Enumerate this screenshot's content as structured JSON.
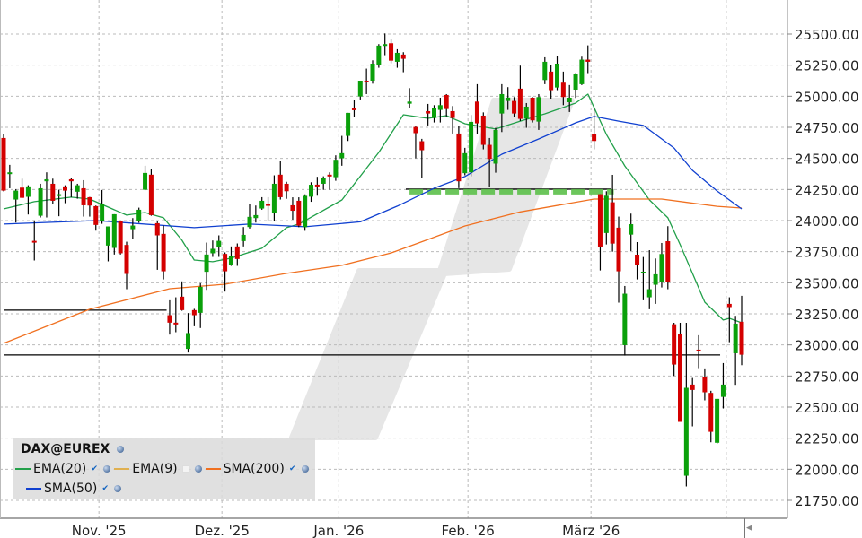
{
  "chart_data": {
    "type": "candlestick",
    "instrument": "DAX@EUREX",
    "ylim": [
      21750,
      25500
    ],
    "y_ticks": [
      "25500.00",
      "25250.00",
      "25000.00",
      "24750.00",
      "24500.00",
      "24250.00",
      "24000.00",
      "23750.00",
      "23500.00",
      "23250.00",
      "23000.00",
      "22750.00",
      "22500.00",
      "22250.00",
      "22000.00",
      "21750.00"
    ],
    "x_ticks": [
      {
        "label": "Nov. '25",
        "first_candle": 16
      },
      {
        "label": "Dez. '25",
        "first_candle": 36
      },
      {
        "label": "Jan. '26",
        "first_candle": 55
      },
      {
        "label": "Feb. '26",
        "first_candle": 76
      },
      {
        "label": "März '26",
        "first_candle": 96
      },
      {
        "label": "",
        "first_candle": 118
      }
    ],
    "grid": true,
    "colors": {
      "up": "#0aa00a",
      "down": "#d40000",
      "ema20": "#22a04a",
      "ema9": "#e0b050",
      "sma200": "#f07020",
      "sma50": "#1040d0",
      "support_dash": "#5cc04a"
    },
    "candles_ohlc": [
      [
        24664,
        24693,
        24235,
        24241
      ],
      [
        24380,
        24448,
        24260,
        24388
      ],
      [
        24169,
        24253,
        23984,
        24241
      ],
      [
        24265,
        24337,
        24180,
        24183
      ],
      [
        24191,
        24284,
        24049,
        24275
      ],
      [
        23837,
        24001,
        23679,
        23823
      ],
      [
        24039,
        24296,
        24025,
        24260
      ],
      [
        24316,
        24388,
        24025,
        24332
      ],
      [
        24296,
        24337,
        24131,
        24159
      ],
      [
        24200,
        24248,
        24035,
        24212
      ],
      [
        24275,
        24284,
        24140,
        24241
      ],
      [
        24332,
        24344,
        24188,
        24316
      ],
      [
        24232,
        24296,
        24176,
        24284
      ],
      [
        24260,
        24325,
        24032,
        24123
      ],
      [
        24188,
        24190,
        24032,
        24121
      ],
      [
        24116,
        24121,
        23919,
        23965
      ],
      [
        23994,
        24246,
        23974,
        24135
      ],
      [
        23799,
        23953,
        23672,
        23953
      ],
      [
        23780,
        24051,
        23727,
        24051
      ],
      [
        23994,
        23994,
        23727,
        23737
      ],
      [
        23804,
        23830,
        23448,
        23571
      ],
      [
        23931,
        24020,
        23852,
        23960
      ],
      [
        23996,
        24104,
        23982,
        24087
      ],
      [
        24248,
        24441,
        24244,
        24383
      ],
      [
        24369,
        24417,
        24039,
        24044
      ],
      [
        23979,
        23996,
        23604,
        23881
      ],
      [
        23893,
        23960,
        23527,
        23592
      ],
      [
        23239,
        23359,
        23083,
        23179
      ],
      [
        23179,
        23383,
        23102,
        23168
      ],
      [
        23388,
        23511,
        23275,
        23280
      ],
      [
        22968,
        23256,
        22939,
        23095
      ],
      [
        23280,
        23290,
        23150,
        23239
      ],
      [
        23258,
        23496,
        23136,
        23467
      ],
      [
        23588,
        23823,
        23443,
        23727
      ],
      [
        23737,
        23840,
        23708,
        23773
      ],
      [
        23787,
        23881,
        23708,
        23837
      ],
      [
        23732,
        23744,
        23429,
        23592
      ],
      [
        23643,
        23792,
        23636,
        23712
      ],
      [
        23792,
        23816,
        23636,
        23691
      ],
      [
        23835,
        23948,
        23792,
        23885
      ],
      [
        23948,
        24133,
        23936,
        24030
      ],
      [
        24020,
        24121,
        23984,
        24044
      ],
      [
        24097,
        24188,
        24087,
        24159
      ],
      [
        24133,
        24188,
        23996,
        24121
      ],
      [
        24061,
        24364,
        23996,
        24296
      ],
      [
        24369,
        24477,
        24169,
        24188
      ],
      [
        24296,
        24312,
        24175,
        24236
      ],
      [
        24123,
        24187,
        24007,
        24079
      ],
      [
        24159,
        24187,
        23947,
        23959
      ],
      [
        23947,
        24211,
        23918,
        24199
      ],
      [
        24192,
        24308,
        24151,
        24288
      ],
      [
        24289,
        24352,
        24200,
        24277
      ],
      [
        24296,
        24356,
        24248,
        24340
      ],
      [
        24369,
        24388,
        24248,
        24356
      ],
      [
        24349,
        24525,
        24320,
        24489
      ],
      [
        24501,
        24681,
        24441,
        24542
      ],
      [
        24681,
        24866,
        24640,
        24866
      ],
      [
        24902,
        24969,
        24832,
        24890
      ],
      [
        24998,
        25125,
        24974,
        25125
      ],
      [
        25125,
        25222,
        25017,
        25113
      ],
      [
        25125,
        25289,
        25101,
        25262
      ],
      [
        25250,
        25419,
        25229,
        25407
      ],
      [
        25407,
        25505,
        25330,
        25419
      ],
      [
        25426,
        25462,
        25265,
        25286
      ],
      [
        25277,
        25378,
        25229,
        25349
      ],
      [
        25335,
        25354,
        25193,
        25301
      ],
      [
        24940,
        25065,
        24904,
        24957
      ],
      [
        24753,
        24758,
        24501,
        24703
      ],
      [
        24638,
        24657,
        24340,
        24566
      ],
      [
        24880,
        24938,
        24765,
        24861
      ],
      [
        24825,
        24928,
        24789,
        24902
      ],
      [
        24890,
        24988,
        24789,
        24928
      ],
      [
        25010,
        25017,
        24837,
        24897
      ],
      [
        24880,
        24921,
        24700,
        24825
      ],
      [
        24700,
        24758,
        24261,
        24316
      ],
      [
        24381,
        24585,
        24364,
        24542
      ],
      [
        24388,
        24849,
        24356,
        24794
      ],
      [
        24957,
        25097,
        24693,
        24782
      ],
      [
        24844,
        24870,
        24573,
        24609
      ],
      [
        24609,
        24664,
        24273,
        24496
      ],
      [
        24458,
        24746,
        24385,
        24729
      ],
      [
        24861,
        25097,
        24712,
        25017
      ],
      [
        24962,
        25073,
        24890,
        24989
      ],
      [
        24962,
        24993,
        24832,
        24861
      ],
      [
        25061,
        25246,
        24801,
        24818
      ],
      [
        24820,
        24945,
        24746,
        24916
      ],
      [
        24988,
        24993,
        24789,
        24806
      ],
      [
        24796,
        25017,
        24729,
        24993
      ],
      [
        25130,
        25313,
        25097,
        25277
      ],
      [
        25198,
        25253,
        24981,
        25049
      ],
      [
        25070,
        25325,
        25049,
        25262
      ],
      [
        25109,
        25198,
        24928,
        24993
      ],
      [
        24952,
        25090,
        24873,
        24988
      ],
      [
        25053,
        25186,
        24986,
        25178
      ],
      [
        25097,
        25318,
        25090,
        25294
      ],
      [
        25294,
        25409,
        25186,
        25277
      ],
      [
        24693,
        24897,
        24573,
        24640
      ],
      [
        24212,
        24212,
        23599,
        23791
      ],
      [
        23900,
        24236,
        23808,
        24200
      ],
      [
        24147,
        24368,
        23750,
        23815
      ],
      [
        23943,
        24032,
        23340,
        23592
      ],
      [
        22998,
        23474,
        22914,
        23412
      ],
      [
        23887,
        24056,
        23755,
        23971
      ],
      [
        23726,
        23827,
        23527,
        23640
      ],
      [
        23577,
        23707,
        23359,
        23589
      ],
      [
        23383,
        23762,
        23287,
        23448
      ],
      [
        23484,
        23695,
        23330,
        23568
      ],
      [
        23503,
        23820,
        23462,
        23731
      ],
      [
        23834,
        23955,
        23448,
        23503
      ],
      [
        23166,
        23178,
        22751,
        22842
      ],
      [
        23087,
        23178,
        22381,
        22381
      ],
      [
        21948,
        23178,
        21862,
        22655
      ],
      [
        22681,
        22734,
        22345,
        22638
      ],
      [
        22962,
        23078,
        22813,
        22950
      ],
      [
        22739,
        22811,
        22554,
        22619
      ],
      [
        22614,
        22631,
        22217,
        22301
      ],
      [
        22213,
        22566,
        22205,
        22566
      ],
      [
        22582,
        22854,
        22489,
        22681
      ],
      [
        23330,
        23383,
        23022,
        23304
      ],
      [
        22933,
        23234,
        22679,
        23171
      ],
      [
        23186,
        23395,
        22837,
        22921
      ]
    ],
    "indicators": [
      {
        "name": "EMA(20)",
        "color": "#22a04a",
        "enabled": true,
        "points": [
          [
            0,
            24094
          ],
          [
            5,
            24152
          ],
          [
            11,
            24188
          ],
          [
            14,
            24173
          ],
          [
            20,
            24044
          ],
          [
            23,
            24065
          ],
          [
            26,
            24022
          ],
          [
            29,
            23842
          ],
          [
            31,
            23683
          ],
          [
            34,
            23669
          ],
          [
            37,
            23698
          ],
          [
            42,
            23777
          ],
          [
            46,
            23943
          ],
          [
            48,
            23972
          ],
          [
            55,
            24166
          ],
          [
            61,
            24548
          ],
          [
            65,
            24851
          ],
          [
            69,
            24822
          ],
          [
            72,
            24844
          ],
          [
            75,
            24779
          ],
          [
            80,
            24736
          ],
          [
            84,
            24800
          ],
          [
            88,
            24858
          ],
          [
            93,
            24945
          ],
          [
            95,
            25017
          ],
          [
            98,
            24693
          ],
          [
            101,
            24440
          ],
          [
            105,
            24166
          ],
          [
            108,
            24022
          ],
          [
            110,
            23806
          ],
          [
            112,
            23575
          ],
          [
            114,
            23344
          ],
          [
            117,
            23200
          ],
          [
            118,
            23214
          ],
          [
            120,
            23178
          ]
        ]
      },
      {
        "name": "EMA(9)",
        "color": "#e0b050",
        "enabled": false,
        "points": []
      },
      {
        "name": "SMA(200)",
        "color": "#f07020",
        "enabled": true,
        "points": [
          [
            0,
            23013
          ],
          [
            14,
            23287
          ],
          [
            27,
            23452
          ],
          [
            36,
            23488
          ],
          [
            46,
            23575
          ],
          [
            55,
            23640
          ],
          [
            63,
            23740
          ],
          [
            68,
            23830
          ],
          [
            75,
            23957
          ],
          [
            84,
            24070
          ],
          [
            96,
            24173
          ],
          [
            107,
            24173
          ],
          [
            116,
            24115
          ],
          [
            120,
            24101
          ]
        ]
      },
      {
        "name": "SMA(50)",
        "color": "#1040d0",
        "enabled": true,
        "points": [
          [
            0,
            23972
          ],
          [
            15,
            24000
          ],
          [
            31,
            23943
          ],
          [
            40,
            23972
          ],
          [
            49,
            23950
          ],
          [
            58,
            23990
          ],
          [
            64,
            24116
          ],
          [
            70,
            24260
          ],
          [
            75,
            24354
          ],
          [
            81,
            24534
          ],
          [
            87,
            24656
          ],
          [
            93,
            24786
          ],
          [
            96,
            24837
          ],
          [
            100,
            24800
          ],
          [
            104,
            24765
          ],
          [
            109,
            24584
          ],
          [
            112,
            24404
          ],
          [
            116,
            24238
          ],
          [
            120,
            24094
          ]
        ]
      }
    ],
    "horizontal_lines": [
      {
        "value": 23280,
        "from_candle": 0,
        "to_candle": 26.5,
        "style": "solid",
        "color": "#000000"
      },
      {
        "value": 22919,
        "from_candle": 0,
        "to_candle": 116.5,
        "style": "solid",
        "color": "#000000"
      },
      {
        "value": 24253,
        "from_candle": 65.4,
        "to_candle": 98.7,
        "style": "solid",
        "color": "#000000"
      },
      {
        "value": 24232,
        "from_candle": 66,
        "to_candle": 99.2,
        "style": "dashed",
        "color": "#5cc04a"
      }
    ]
  },
  "legend": {
    "title": "DAX@EUREX",
    "items": [
      {
        "label": "EMA(20)",
        "checked": true
      },
      {
        "label": "EMA(9)",
        "checked": false
      },
      {
        "label": "SMA(200)",
        "checked": true
      },
      {
        "label": "SMA(50)",
        "checked": true
      }
    ],
    "icon": "globe-icon"
  }
}
